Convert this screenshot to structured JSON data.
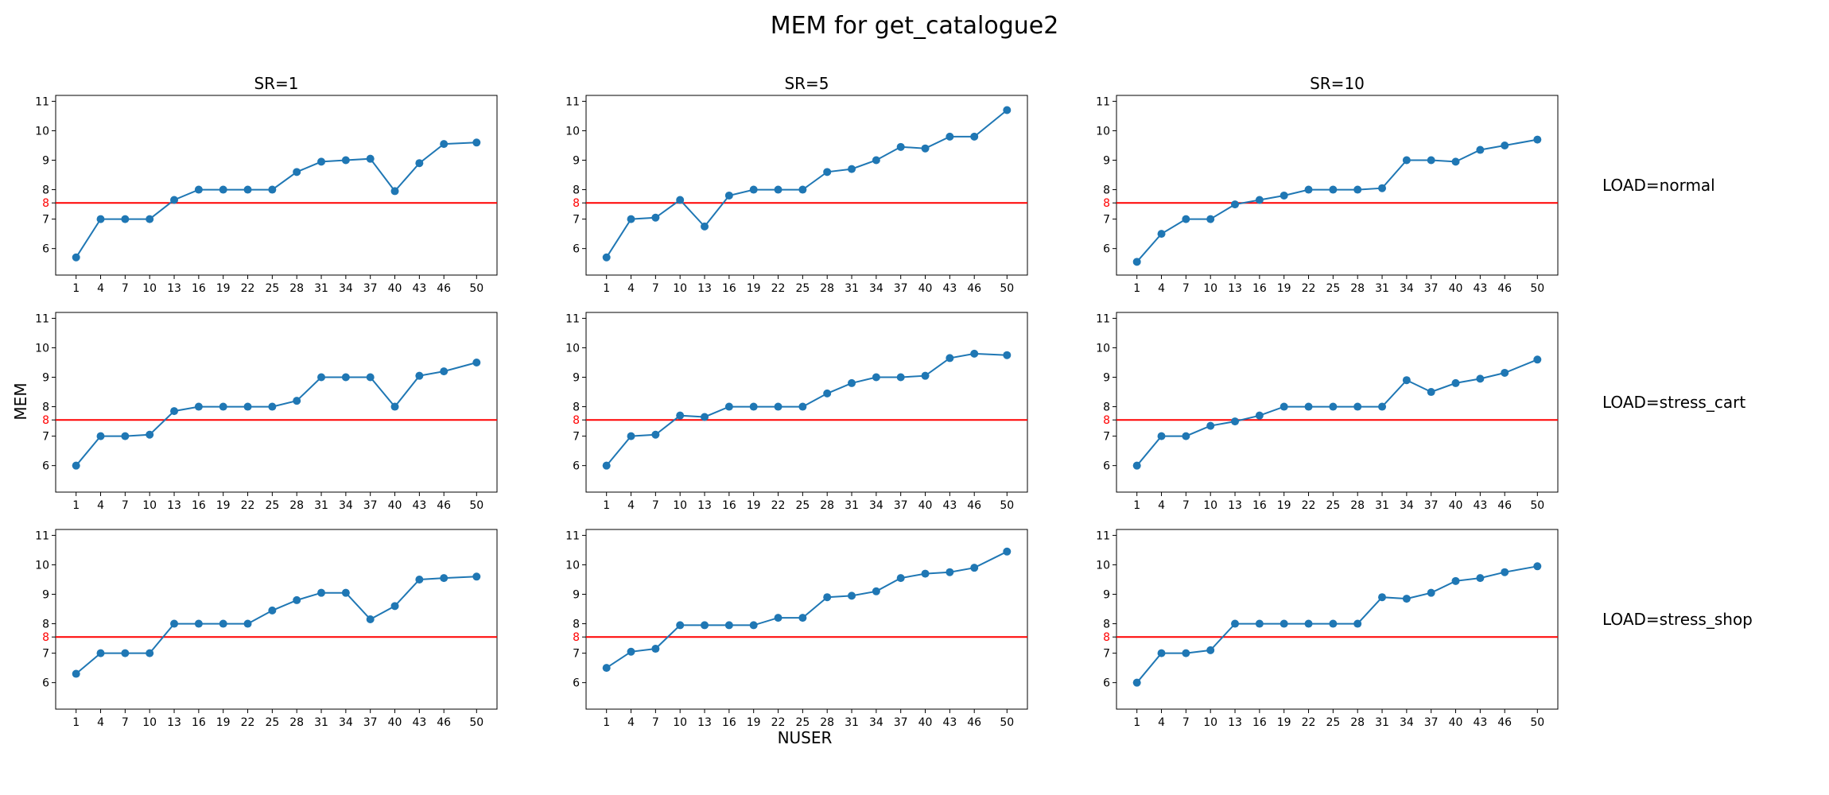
{
  "chart_data": {
    "type": "line",
    "title": "MEM for get_catalogue2",
    "xlabel": "NUSER",
    "ylabel": "MEM",
    "x": [
      1,
      4,
      7,
      10,
      13,
      16,
      19,
      22,
      25,
      28,
      31,
      34,
      37,
      40,
      43,
      46,
      50
    ],
    "xlim": [
      -1.5,
      52.5
    ],
    "ylim": [
      5.1,
      11.2
    ],
    "yticks": [
      6,
      7,
      8,
      9,
      10,
      11
    ],
    "threshold": {
      "value": 7.55,
      "tick_label": "8",
      "color": "#ff0000"
    },
    "series_color": "#1f77b4",
    "grid": false,
    "columns": [
      "SR=1",
      "SR=5",
      "SR=10"
    ],
    "rows": [
      "LOAD=normal",
      "LOAD=stress_cart",
      "LOAD=stress_shop"
    ],
    "panels": [
      [
        {
          "column": "SR=1",
          "row": "LOAD=normal",
          "values": [
            5.7,
            7.0,
            7.0,
            7.0,
            7.65,
            8.0,
            8.0,
            8.0,
            8.0,
            8.6,
            8.95,
            9.0,
            9.05,
            7.95,
            8.9,
            9.55,
            9.6
          ]
        },
        {
          "column": "SR=5",
          "row": "LOAD=normal",
          "values": [
            5.7,
            7.0,
            7.05,
            7.65,
            6.75,
            7.8,
            8.0,
            8.0,
            8.0,
            8.6,
            8.7,
            9.0,
            9.45,
            9.4,
            9.8,
            9.8,
            10.7
          ]
        },
        {
          "column": "SR=10",
          "row": "LOAD=normal",
          "values": [
            5.55,
            6.5,
            7.0,
            7.0,
            7.5,
            7.65,
            7.8,
            8.0,
            8.0,
            8.0,
            8.05,
            9.0,
            9.0,
            8.95,
            9.35,
            9.5,
            9.7
          ]
        }
      ],
      [
        {
          "column": "SR=1",
          "row": "LOAD=stress_cart",
          "values": [
            6.0,
            7.0,
            7.0,
            7.05,
            7.85,
            8.0,
            8.0,
            8.0,
            8.0,
            8.2,
            9.0,
            9.0,
            9.0,
            8.0,
            9.05,
            9.2,
            9.5
          ]
        },
        {
          "column": "SR=5",
          "row": "LOAD=stress_cart",
          "values": [
            6.0,
            7.0,
            7.05,
            7.7,
            7.65,
            8.0,
            8.0,
            8.0,
            8.0,
            8.45,
            8.8,
            9.0,
            9.0,
            9.05,
            9.65,
            9.8,
            9.75
          ]
        },
        {
          "column": "SR=10",
          "row": "LOAD=stress_cart",
          "values": [
            6.0,
            7.0,
            7.0,
            7.35,
            7.5,
            7.7,
            8.0,
            8.0,
            8.0,
            8.0,
            8.0,
            8.9,
            8.5,
            8.8,
            8.95,
            9.15,
            9.6
          ]
        }
      ],
      [
        {
          "column": "SR=1",
          "row": "LOAD=stress_shop",
          "values": [
            6.3,
            7.0,
            7.0,
            7.0,
            8.0,
            8.0,
            8.0,
            8.0,
            8.45,
            8.8,
            9.05,
            9.05,
            8.15,
            8.6,
            9.5,
            9.55,
            9.6
          ]
        },
        {
          "column": "SR=5",
          "row": "LOAD=stress_shop",
          "values": [
            6.5,
            7.05,
            7.15,
            7.95,
            7.95,
            7.95,
            7.95,
            8.2,
            8.2,
            8.9,
            8.95,
            9.1,
            9.55,
            9.7,
            9.75,
            9.9,
            10.45
          ]
        },
        {
          "column": "SR=10",
          "row": "LOAD=stress_shop",
          "values": [
            6.0,
            7.0,
            7.0,
            7.1,
            8.0,
            8.0,
            8.0,
            8.0,
            8.0,
            8.0,
            8.9,
            8.85,
            9.05,
            9.45,
            9.55,
            9.75,
            9.95
          ]
        }
      ]
    ]
  }
}
